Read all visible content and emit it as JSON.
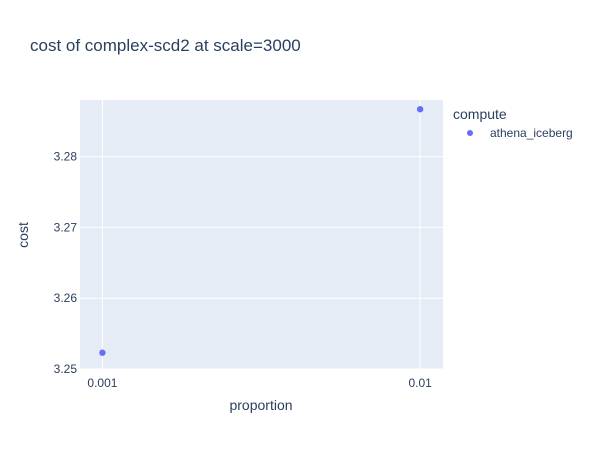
{
  "chart_data": {
    "type": "scatter",
    "title": "cost of complex-scd2 at scale=3000",
    "xlabel": "proportion",
    "ylabel": "cost",
    "x_scale": "log",
    "xlim": [
      0.00085,
      0.0118
    ],
    "ylim": [
      3.25,
      3.288
    ],
    "x_ticks": [
      {
        "value": 0.001,
        "label": "0.001"
      },
      {
        "value": 0.01,
        "label": "0.01"
      }
    ],
    "y_ticks": [
      {
        "value": 3.25,
        "label": "3.25"
      },
      {
        "value": 3.26,
        "label": "3.26"
      },
      {
        "value": 3.27,
        "label": "3.27"
      },
      {
        "value": 3.28,
        "label": "3.28"
      }
    ],
    "grid": true,
    "legend": {
      "title": "compute",
      "position": "top-right"
    },
    "series": [
      {
        "name": "athena_iceberg",
        "color": "#636efa",
        "x": [
          0.001,
          0.01
        ],
        "y": [
          3.2523,
          3.2867
        ]
      }
    ]
  },
  "colors": {
    "plot_background": "#e5ecf6",
    "grid": "#ffffff",
    "text": "#2a3f5f"
  }
}
